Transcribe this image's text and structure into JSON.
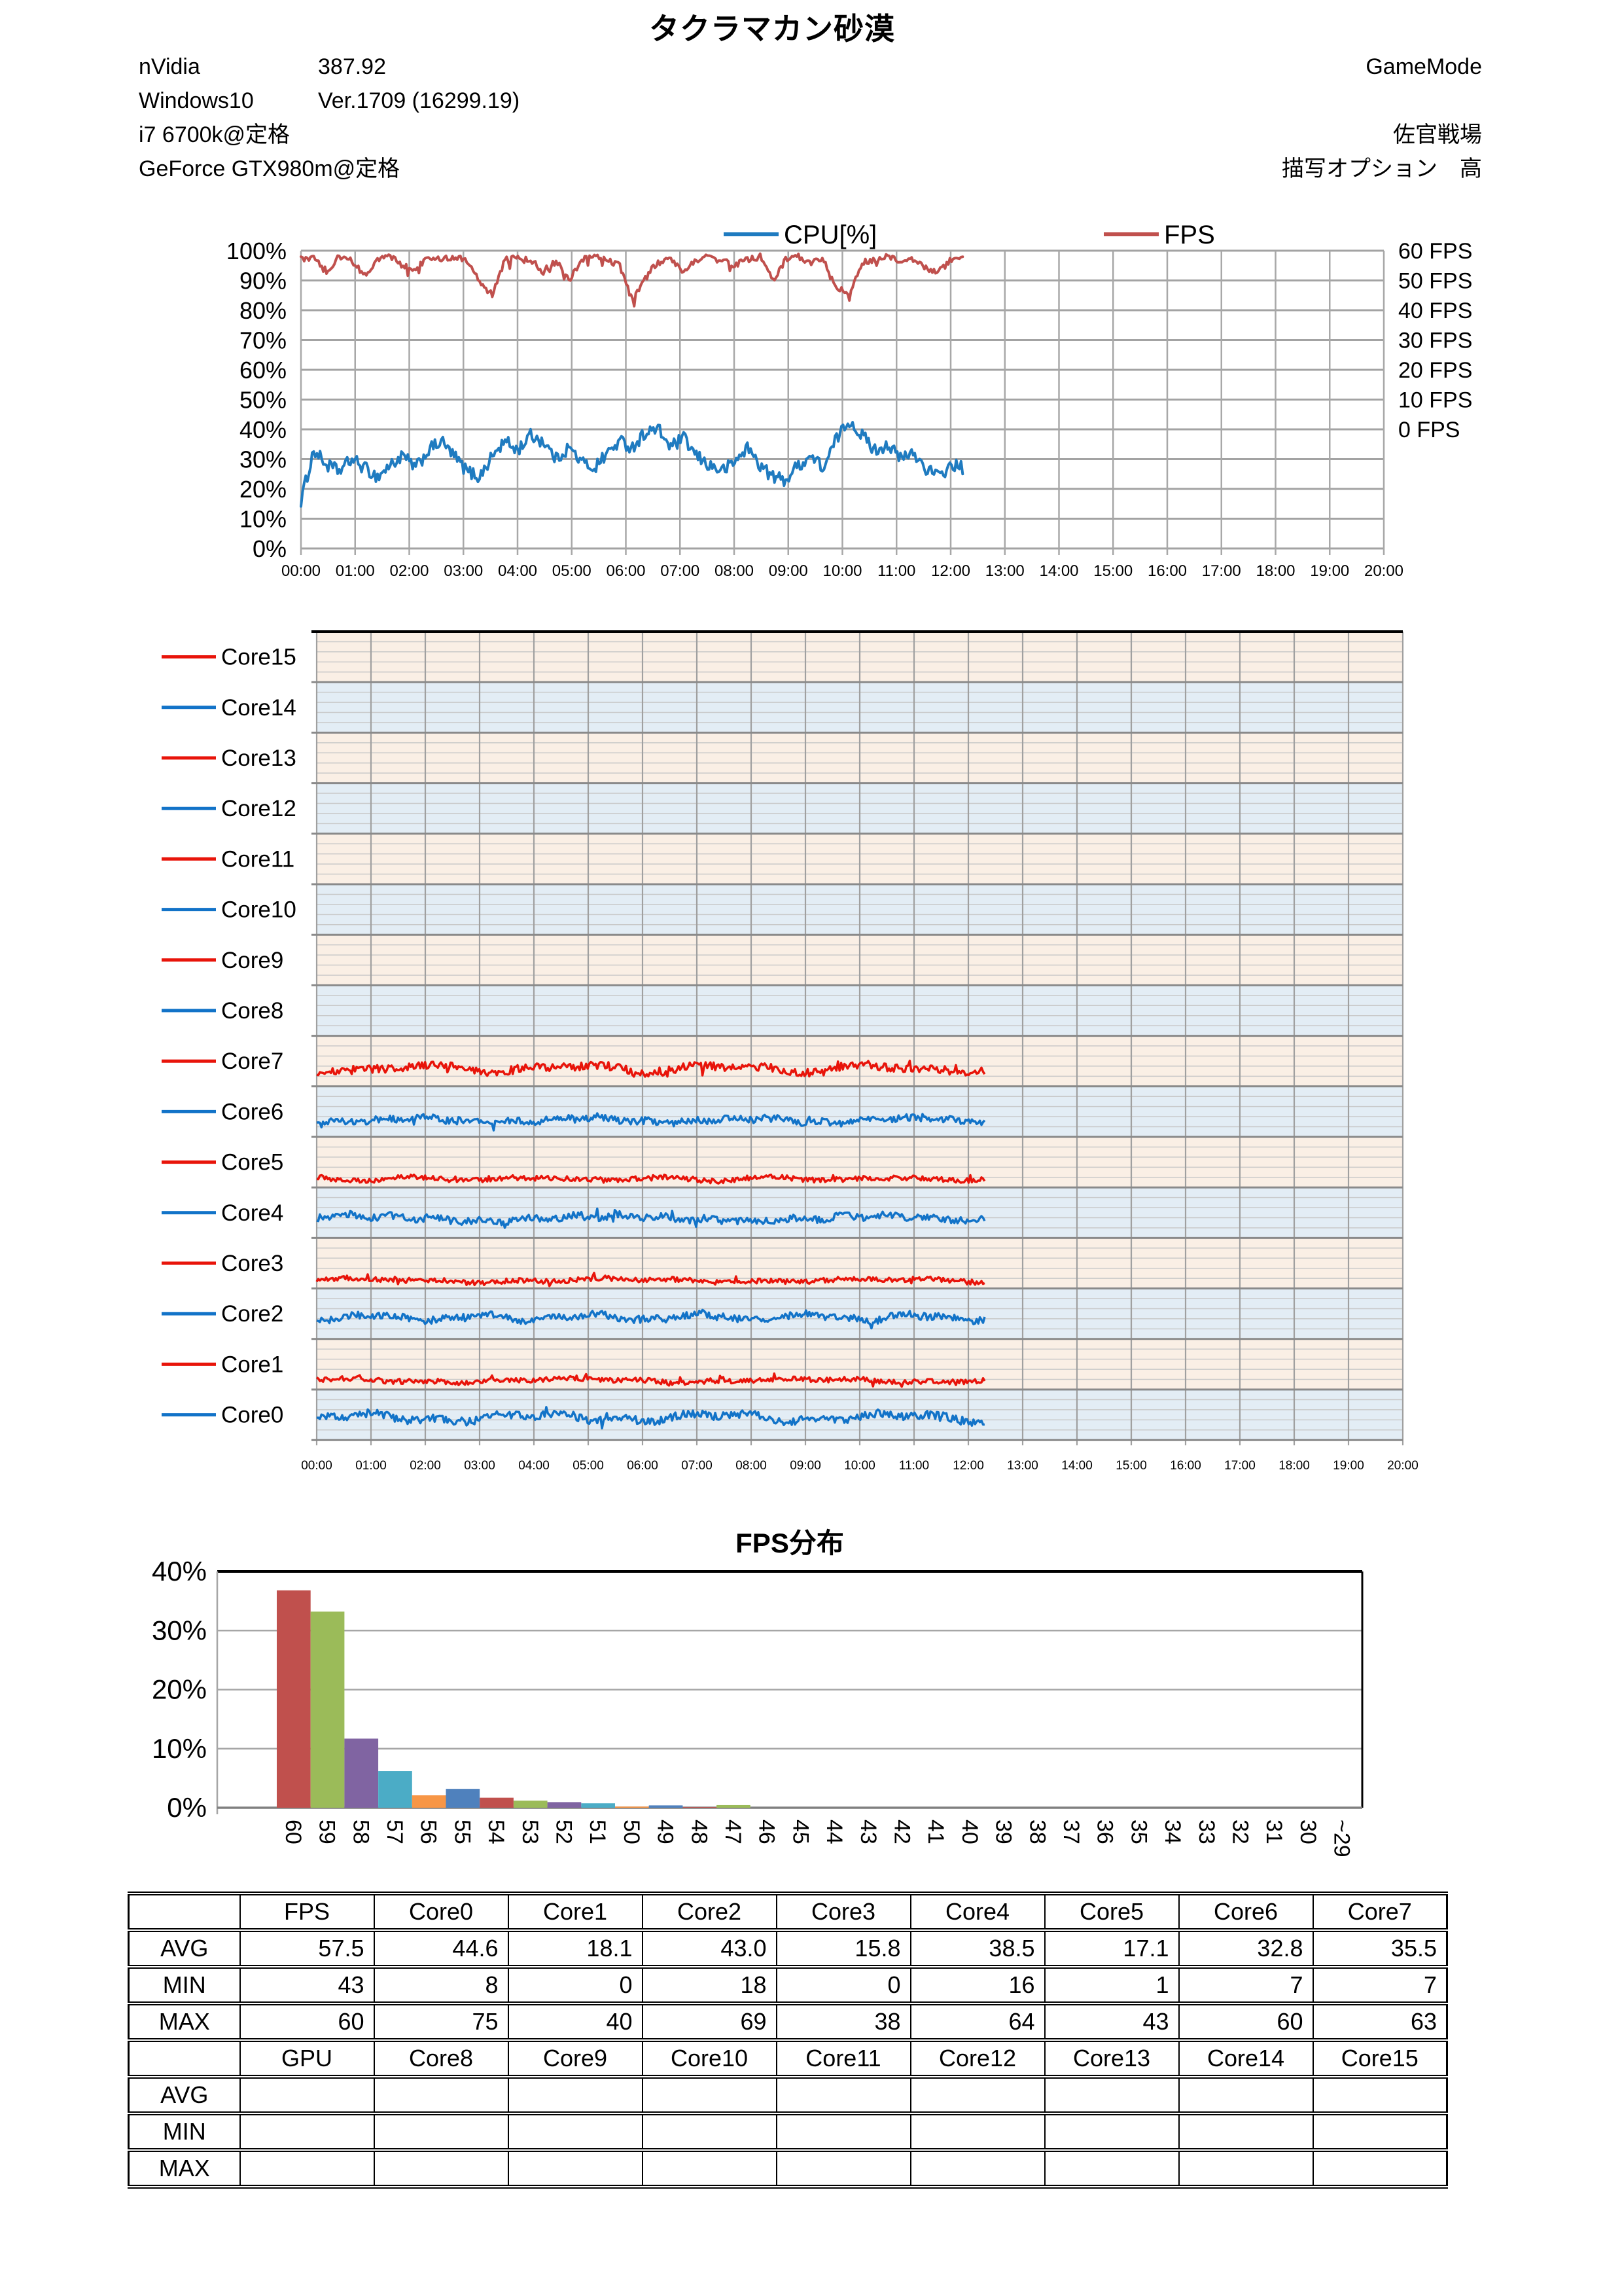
{
  "header": {
    "title": "タクラマカン砂漠",
    "system_lines": [
      {
        "label": "nVidia",
        "value": "387.92"
      },
      {
        "label": "Windows10",
        "value": "Ver.1709 (16299.19)"
      },
      {
        "label": "i7 6700k@定格",
        "value": ""
      },
      {
        "label": "GeForce GTX980m@定格",
        "value": ""
      }
    ],
    "run_lines": [
      "GameMode",
      "",
      "佐官戦場",
      "描写オプション　高"
    ]
  },
  "chart_data": [
    {
      "id": "cpu_fps",
      "type": "line",
      "title": "",
      "legend": [
        {
          "label": "CPU[%]",
          "color": "#1F7BC0"
        },
        {
          "label": "FPS",
          "color": "#C0504D"
        }
      ],
      "x_ticks": [
        "00:00",
        "01:00",
        "02:00",
        "03:00",
        "04:00",
        "05:00",
        "06:00",
        "07:00",
        "08:00",
        "09:00",
        "10:00",
        "11:00",
        "12:00",
        "13:00",
        "14:00",
        "15:00",
        "16:00",
        "17:00",
        "18:00",
        "19:00",
        "20:00"
      ],
      "x_range_hours": [
        0,
        20
      ],
      "data_end_hour": 12.25,
      "y_left": {
        "ticks": [
          "100%",
          "90%",
          "80%",
          "70%",
          "60%",
          "50%",
          "40%",
          "30%",
          "20%",
          "10%",
          "0%"
        ],
        "min": 0,
        "max": 100
      },
      "y_right": {
        "labels": [
          "60 FPS",
          "50 FPS",
          "40 FPS",
          "30 FPS",
          "20 FPS",
          "10 FPS",
          "0 FPS"
        ],
        "fps_zero_at_percent": 40,
        "percent_per_10fps": 10
      },
      "grid": true,
      "series": [
        {
          "name": "CPU[%]",
          "axis": "left",
          "color": "#1F7BC0",
          "noise": 2.2,
          "samples": [
            16,
            33,
            28,
            26,
            30,
            27,
            24,
            28,
            31,
            27,
            33,
            36,
            31,
            26,
            24,
            31,
            36,
            33,
            38,
            36,
            30,
            34,
            29,
            27,
            32,
            36,
            34,
            39,
            40,
            34,
            37,
            31,
            28,
            26,
            29,
            34,
            28,
            24,
            23,
            28,
            31,
            27,
            37,
            43,
            38,
            33,
            35,
            30,
            32,
            27,
            24,
            28,
            27
          ]
        },
        {
          "name": "FPS",
          "axis": "right",
          "color": "#C0504D",
          "noise": 1.0,
          "cap": 60,
          "samples": [
            57,
            58,
            53,
            58,
            57,
            52,
            57,
            58,
            55,
            54,
            58,
            57,
            58,
            57,
            50,
            45,
            57,
            58,
            57,
            53,
            57,
            50,
            57,
            58,
            57,
            55,
            43,
            52,
            56,
            57,
            53,
            57,
            58,
            57,
            55,
            57,
            58,
            50,
            57,
            58,
            56,
            57,
            48,
            45,
            56,
            57,
            58,
            56,
            57,
            54,
            53,
            57,
            57
          ]
        }
      ]
    },
    {
      "id": "per_core",
      "type": "line-bands",
      "title": "",
      "x_ticks": [
        "00:00",
        "01:00",
        "02:00",
        "03:00",
        "04:00",
        "05:00",
        "06:00",
        "07:00",
        "08:00",
        "09:00",
        "10:00",
        "11:00",
        "12:00",
        "13:00",
        "14:00",
        "15:00",
        "16:00",
        "17:00",
        "18:00",
        "19:00",
        "20:00"
      ],
      "x_range_hours": [
        0,
        20
      ],
      "data_end_hour": 12.3,
      "band_value_range": [
        0,
        100
      ],
      "bands_top_to_bottom": [
        {
          "name": "Core15",
          "line_color": "#E8140A",
          "band_bg": "#FAEFE5",
          "avg": null,
          "slow": 0,
          "fast": 0
        },
        {
          "name": "Core14",
          "line_color": "#1273C8",
          "band_bg": "#E3EDF5",
          "avg": null,
          "slow": 0,
          "fast": 0
        },
        {
          "name": "Core13",
          "line_color": "#E8140A",
          "band_bg": "#FAEFE5",
          "avg": null,
          "slow": 0,
          "fast": 0
        },
        {
          "name": "Core12",
          "line_color": "#1273C8",
          "band_bg": "#E3EDF5",
          "avg": null,
          "slow": 0,
          "fast": 0
        },
        {
          "name": "Core11",
          "line_color": "#E8140A",
          "band_bg": "#FAEFE5",
          "avg": null,
          "slow": 0,
          "fast": 0
        },
        {
          "name": "Core10",
          "line_color": "#1273C8",
          "band_bg": "#E3EDF5",
          "avg": null,
          "slow": 0,
          "fast": 0
        },
        {
          "name": "Core9",
          "line_color": "#E8140A",
          "band_bg": "#FAEFE5",
          "avg": null,
          "slow": 0,
          "fast": 0
        },
        {
          "name": "Core8",
          "line_color": "#1273C8",
          "band_bg": "#E3EDF5",
          "avg": null,
          "slow": 0,
          "fast": 0
        },
        {
          "name": "Core7",
          "line_color": "#E8140A",
          "band_bg": "#FAEFE5",
          "avg": 35.5,
          "slow": 6,
          "fast": 8
        },
        {
          "name": "Core6",
          "line_color": "#1273C8",
          "band_bg": "#E3EDF5",
          "avg": 32.8,
          "slow": 4,
          "fast": 7
        },
        {
          "name": "Core5",
          "line_color": "#E8140A",
          "band_bg": "#FAEFE5",
          "avg": 17.1,
          "slow": 3,
          "fast": 5
        },
        {
          "name": "Core4",
          "line_color": "#1273C8",
          "band_bg": "#E3EDF5",
          "avg": 38.5,
          "slow": 5,
          "fast": 7
        },
        {
          "name": "Core3",
          "line_color": "#E8140A",
          "band_bg": "#FAEFE5",
          "avg": 15.8,
          "slow": 3,
          "fast": 5
        },
        {
          "name": "Core2",
          "line_color": "#1273C8",
          "band_bg": "#E3EDF5",
          "avg": 43.0,
          "slow": 5,
          "fast": 7
        },
        {
          "name": "Core1",
          "line_color": "#E8140A",
          "band_bg": "#FAEFE5",
          "avg": 18.1,
          "slow": 3,
          "fast": 5
        },
        {
          "name": "Core0",
          "line_color": "#1273C8",
          "band_bg": "#E3EDF5",
          "avg": 44.6,
          "slow": 6,
          "fast": 8
        }
      ]
    },
    {
      "id": "fps_hist",
      "type": "bar",
      "title": "FPS分布",
      "categories": [
        "60",
        "59",
        "58",
        "57",
        "56",
        "55",
        "54",
        "53",
        "52",
        "51",
        "50",
        "49",
        "48",
        "47",
        "46",
        "45",
        "44",
        "43",
        "42",
        "41",
        "40",
        "39",
        "38",
        "37",
        "36",
        "35",
        "34",
        "33",
        "32",
        "31",
        "30",
        "~29"
      ],
      "values": [
        36.8,
        33.2,
        11.7,
        6.2,
        2.1,
        3.2,
        1.7,
        1.2,
        0.95,
        0.75,
        0.2,
        0.4,
        0.1,
        0.45,
        0,
        0,
        0,
        0,
        0,
        0,
        0,
        0,
        0,
        0,
        0,
        0,
        0,
        0,
        0,
        0,
        0,
        0
      ],
      "y_ticks": [
        "40%",
        "30%",
        "20%",
        "10%",
        "0%"
      ],
      "ylim": [
        0,
        40
      ],
      "grid": true,
      "palette": [
        "#C0504D",
        "#9BBB59",
        "#8064A2",
        "#4BACC6",
        "#F79646",
        "#4F81BD"
      ]
    }
  ],
  "table": {
    "sections": [
      {
        "columns": [
          "",
          "FPS",
          "Core0",
          "Core1",
          "Core2",
          "Core3",
          "Core4",
          "Core5",
          "Core6",
          "Core7"
        ],
        "rows": [
          {
            "label": "AVG",
            "values": [
              "57.5",
              "44.6",
              "18.1",
              "43.0",
              "15.8",
              "38.5",
              "17.1",
              "32.8",
              "35.5"
            ]
          },
          {
            "label": "MIN",
            "values": [
              "43",
              "8",
              "0",
              "18",
              "0",
              "16",
              "1",
              "7",
              "7"
            ]
          },
          {
            "label": "MAX",
            "values": [
              "60",
              "75",
              "40",
              "69",
              "38",
              "64",
              "43",
              "60",
              "63"
            ]
          }
        ]
      },
      {
        "columns": [
          "",
          "GPU",
          "Core8",
          "Core9",
          "Core10",
          "Core11",
          "Core12",
          "Core13",
          "Core14",
          "Core15"
        ],
        "rows": [
          {
            "label": "AVG",
            "values": [
              "",
              "",
              "",
              "",
              "",
              "",
              "",
              "",
              ""
            ]
          },
          {
            "label": "MIN",
            "values": [
              "",
              "",
              "",
              "",
              "",
              "",
              "",
              "",
              ""
            ]
          },
          {
            "label": "MAX",
            "values": [
              "",
              "",
              "",
              "",
              "",
              "",
              "",
              "",
              ""
            ]
          }
        ]
      }
    ]
  }
}
